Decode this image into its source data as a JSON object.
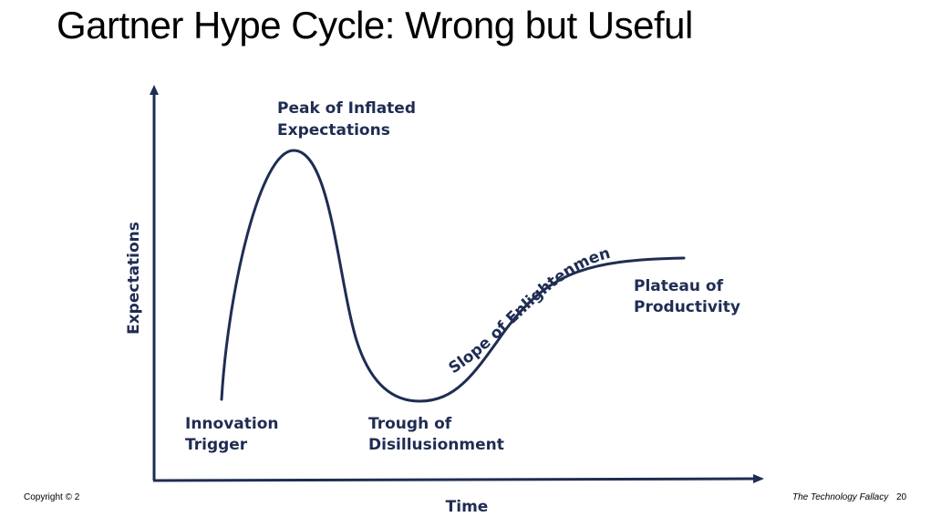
{
  "title": "Gartner Hype Cycle:  Wrong but Useful",
  "diagram": {
    "y_axis_label": "Expectations",
    "x_axis_label": "Time",
    "phases": {
      "innovation_trigger": [
        "Innovation",
        "Trigger"
      ],
      "peak": [
        "Peak of Inflated",
        "Expectations"
      ],
      "trough": [
        "Trough of",
        "Disillusionment"
      ],
      "slope": "Slope of Enlightenment",
      "plateau": [
        "Plateau of",
        "Productivity"
      ]
    },
    "line_color": "#1f2d53"
  },
  "footer": {
    "copyright": "Copyright © 2",
    "book": "The Technology Fallacy",
    "page": "20"
  }
}
